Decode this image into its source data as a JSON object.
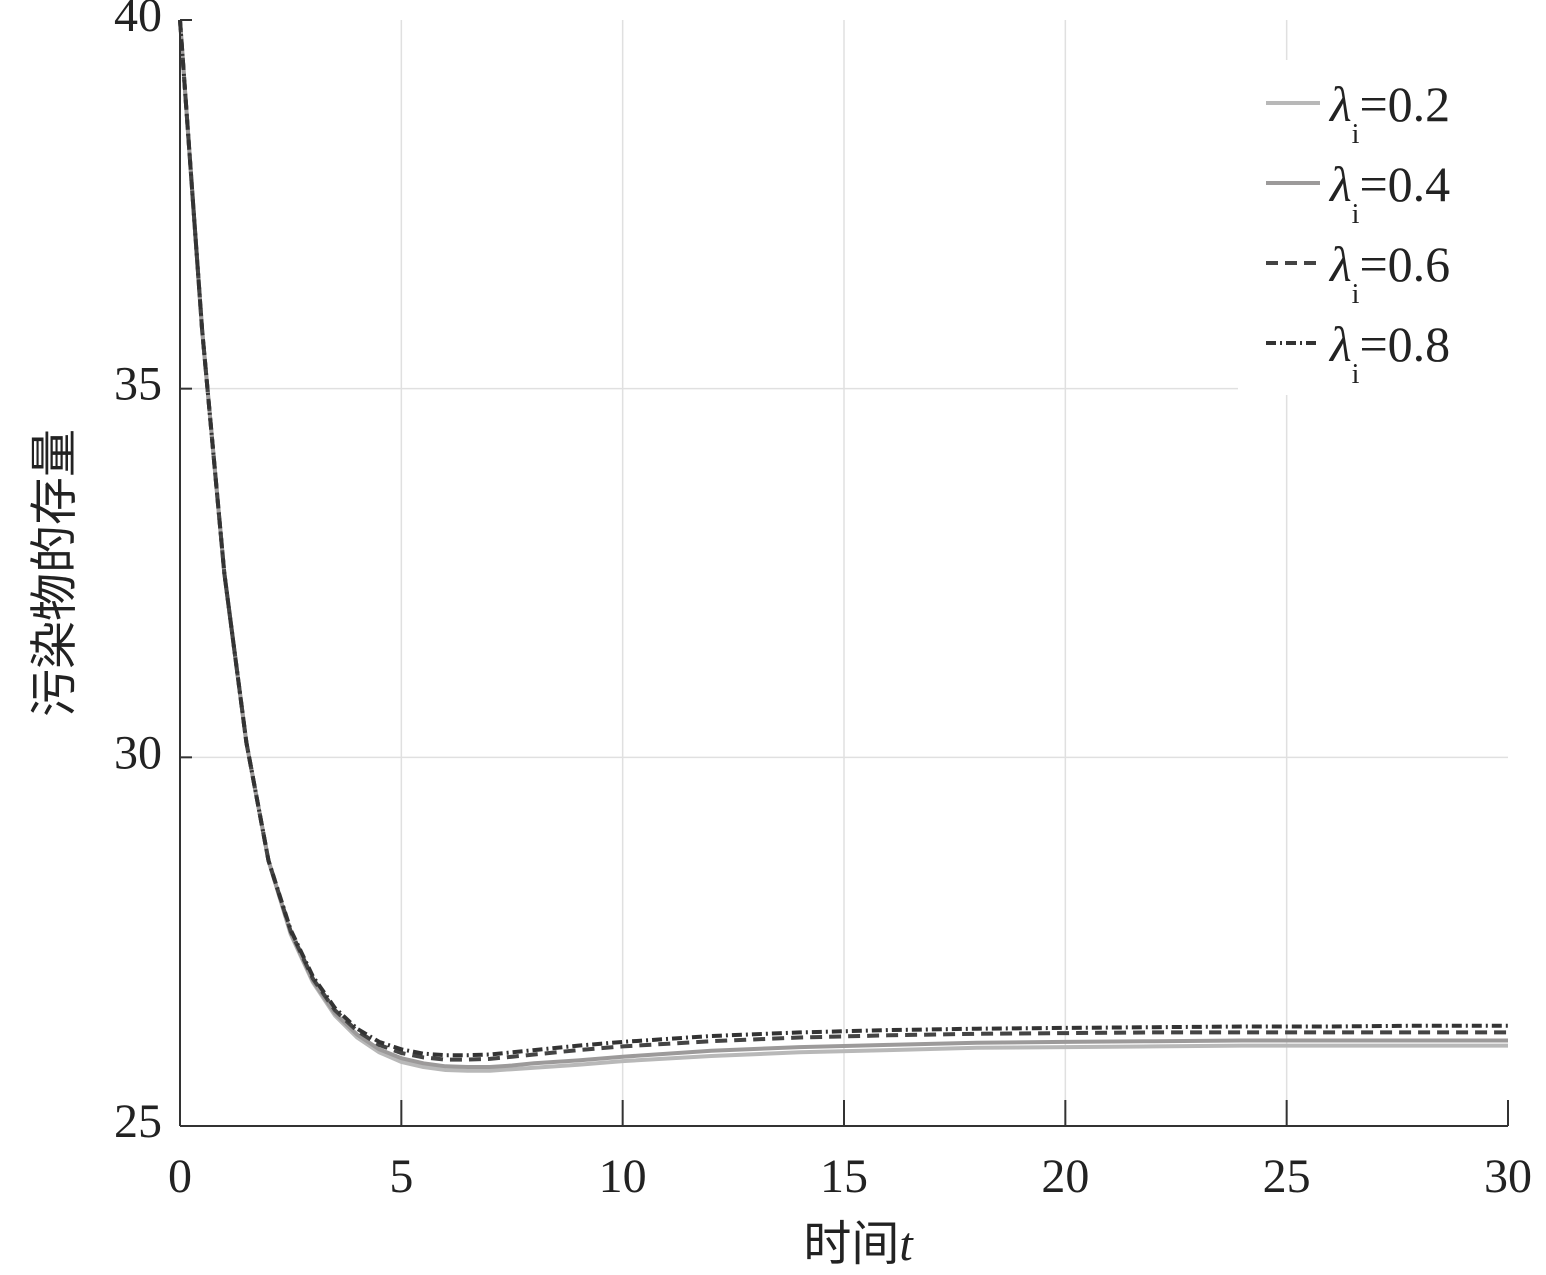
{
  "chart_data": {
    "type": "line",
    "title": "",
    "xlabel": "时间",
    "xlabel_var": "t",
    "ylabel": "污染物的存量",
    "xlim": [
      0,
      30
    ],
    "ylim": [
      25,
      40
    ],
    "x_ticks": [
      0,
      5,
      10,
      15,
      20,
      25,
      30
    ],
    "y_ticks": [
      25,
      30,
      35,
      40
    ],
    "grid": true,
    "legend_position": "top-right",
    "series": [
      {
        "name": "λi=0.2",
        "legend_symbol": "λ",
        "legend_sub": "i",
        "legend_value": "=0.2",
        "color": "#b8b8b8",
        "dash": "solid",
        "x": [
          0,
          0.5,
          1,
          1.5,
          2,
          2.5,
          3,
          3.5,
          4,
          4.5,
          5,
          5.5,
          6,
          6.5,
          7,
          7.5,
          8,
          9,
          10,
          12,
          14,
          16,
          18,
          20,
          22,
          24,
          26,
          28,
          30
        ],
        "y": [
          40,
          35.8,
          32.5,
          30.2,
          28.6,
          27.6,
          26.95,
          26.5,
          26.2,
          26.0,
          25.87,
          25.8,
          25.76,
          25.75,
          25.75,
          25.77,
          25.79,
          25.83,
          25.88,
          25.95,
          26.0,
          26.03,
          26.06,
          26.07,
          26.08,
          26.09,
          26.09,
          26.09,
          26.09
        ]
      },
      {
        "name": "λi=0.4",
        "legend_symbol": "λ",
        "legend_sub": "i",
        "legend_value": "=0.4",
        "color": "#9c9a9a",
        "dash": "solid",
        "x": [
          0,
          0.5,
          1,
          1.5,
          2,
          2.5,
          3,
          3.5,
          4,
          4.5,
          5,
          5.5,
          6,
          6.5,
          7,
          7.5,
          8,
          9,
          10,
          12,
          14,
          16,
          18,
          20,
          22,
          24,
          26,
          28,
          30
        ],
        "y": [
          40,
          35.8,
          32.5,
          30.2,
          28.6,
          27.62,
          26.97,
          26.53,
          26.24,
          26.04,
          25.92,
          25.85,
          25.81,
          25.8,
          25.8,
          25.82,
          25.85,
          25.89,
          25.94,
          26.02,
          26.07,
          26.1,
          26.13,
          26.14,
          26.15,
          26.16,
          26.16,
          26.16,
          26.16
        ]
      },
      {
        "name": "λi=0.6",
        "legend_symbol": "λ",
        "legend_sub": "i",
        "legend_value": "=0.6",
        "color": "#444444",
        "dash": "dashed",
        "x": [
          0,
          0.5,
          1,
          1.5,
          2,
          2.5,
          3,
          3.5,
          4,
          4.5,
          5,
          5.5,
          6,
          6.5,
          7,
          7.5,
          8,
          9,
          10,
          12,
          14,
          16,
          18,
          20,
          22,
          24,
          26,
          28,
          30
        ],
        "y": [
          40,
          35.8,
          32.5,
          30.2,
          28.6,
          27.64,
          27.0,
          26.57,
          26.29,
          26.1,
          25.99,
          25.93,
          25.9,
          25.9,
          25.91,
          25.94,
          25.97,
          26.03,
          26.08,
          26.15,
          26.2,
          26.23,
          26.25,
          26.26,
          26.27,
          26.27,
          26.27,
          26.27,
          26.27
        ]
      },
      {
        "name": "λi=0.8",
        "legend_symbol": "λ",
        "legend_sub": "i",
        "legend_value": "=0.8",
        "color": "#333333",
        "dash": "dashdot",
        "x": [
          0,
          0.5,
          1,
          1.5,
          2,
          2.5,
          3,
          3.5,
          4,
          4.5,
          5,
          5.5,
          6,
          6.5,
          7,
          7.5,
          8,
          9,
          10,
          12,
          14,
          16,
          18,
          20,
          22,
          24,
          26,
          28,
          30
        ],
        "y": [
          40,
          35.8,
          32.5,
          30.2,
          28.6,
          27.66,
          27.03,
          26.6,
          26.32,
          26.14,
          26.04,
          25.98,
          25.96,
          25.96,
          25.97,
          26.0,
          26.03,
          26.09,
          26.14,
          26.22,
          26.27,
          26.3,
          26.32,
          26.33,
          26.34,
          26.35,
          26.35,
          26.36,
          26.36
        ]
      }
    ]
  }
}
